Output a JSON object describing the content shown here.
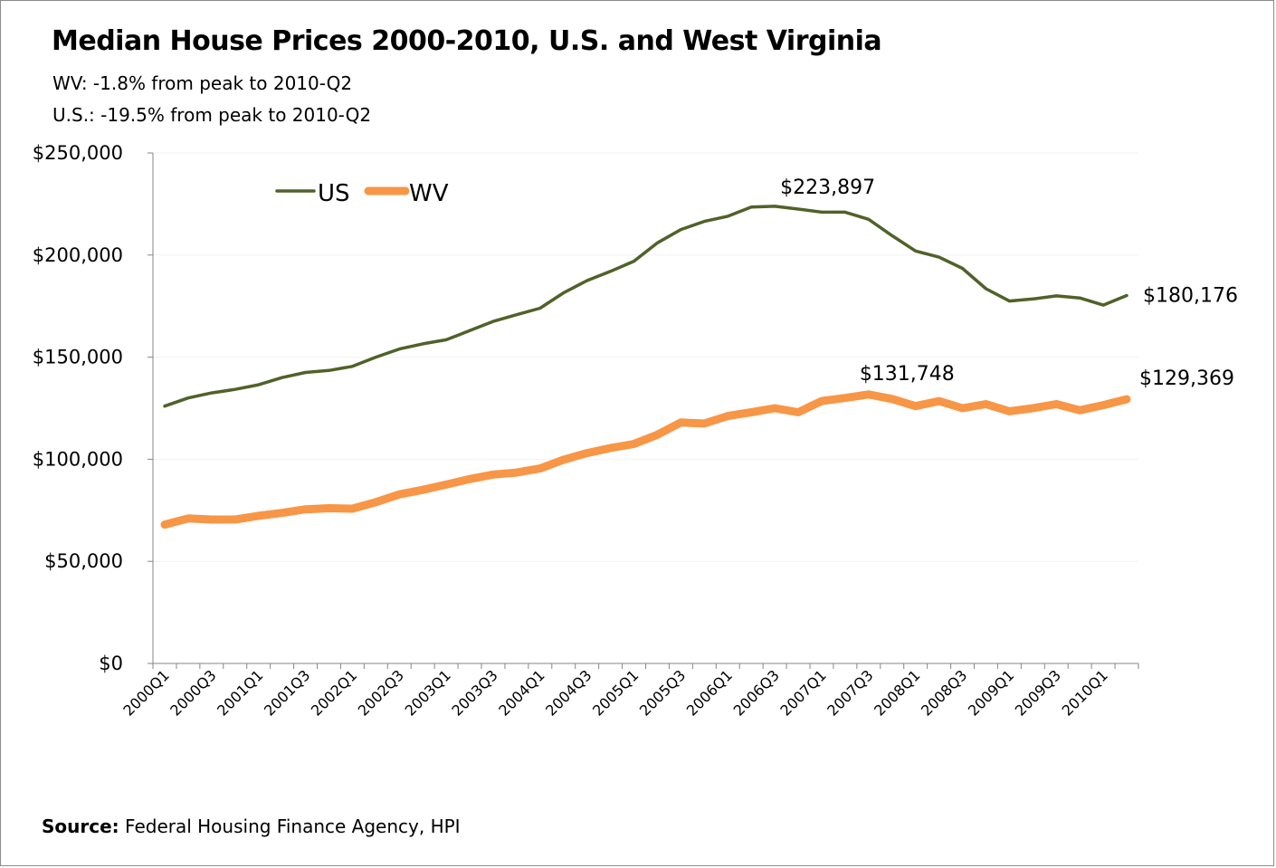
{
  "title": "Median House Prices 2000-2010, U.S. and West Virginia",
  "subtitles": [
    "WV:  -1.8% from peak to 2010-Q2",
    "U.S.: -19.5% from peak to 2010-Q2"
  ],
  "source": {
    "label": "Source:",
    "text": " Federal Housing Finance Agency, HPI"
  },
  "chart_data": {
    "type": "line",
    "title": "Median House Prices 2000-2010, U.S. and West Virginia",
    "xlabel": "",
    "ylabel": "",
    "ylim": [
      0,
      250000
    ],
    "yticks": [
      0,
      50000,
      100000,
      150000,
      200000,
      250000
    ],
    "ytick_labels": [
      "$0",
      "$50,000",
      "$100,000",
      "$150,000",
      "$200,000",
      "$250,000"
    ],
    "grid": "horizontal",
    "legend_position": "top-left",
    "x": [
      "2000Q1",
      "2000Q2",
      "2000Q3",
      "2000Q4",
      "2001Q1",
      "2001Q2",
      "2001Q3",
      "2001Q4",
      "2002Q1",
      "2002Q2",
      "2002Q3",
      "2002Q4",
      "2003Q1",
      "2003Q2",
      "2003Q3",
      "2003Q4",
      "2004Q1",
      "2004Q2",
      "2004Q3",
      "2004Q4",
      "2005Q1",
      "2005Q2",
      "2005Q3",
      "2005Q4",
      "2006Q1",
      "2006Q2",
      "2006Q3",
      "2006Q4",
      "2007Q1",
      "2007Q2",
      "2007Q3",
      "2007Q4",
      "2008Q1",
      "2008Q2",
      "2008Q3",
      "2008Q4",
      "2009Q1",
      "2009Q2",
      "2009Q3",
      "2009Q4",
      "2010Q1",
      "2010Q2"
    ],
    "x_tick_labels": [
      "2000Q1",
      "2000Q3",
      "2001Q1",
      "2001Q3",
      "2002Q1",
      "2002Q3",
      "2003Q1",
      "2003Q3",
      "2004Q1",
      "2004Q3",
      "2005Q1",
      "2005Q3",
      "2006Q1",
      "2006Q3",
      "2007Q1",
      "2007Q3",
      "2008Q1",
      "2008Q3",
      "2009Q1",
      "2009Q3",
      "2010Q1"
    ],
    "series": [
      {
        "name": "US",
        "color": "#4f6228",
        "values": [
          126000,
          130000,
          132500,
          134200,
          136500,
          140000,
          142500,
          143500,
          145500,
          150000,
          154000,
          156500,
          158500,
          163000,
          167500,
          170800,
          174000,
          181500,
          187500,
          192000,
          197000,
          206000,
          212500,
          216500,
          219000,
          223500,
          223897,
          222500,
          221000,
          221000,
          217500,
          209500,
          202000,
          199000,
          193500,
          183500,
          177500,
          178500,
          180000,
          179000,
          175500,
          180176
        ]
      },
      {
        "name": "WV",
        "color": "#f79646",
        "values": [
          68000,
          71000,
          70500,
          70500,
          72300,
          73700,
          75500,
          76000,
          75800,
          79000,
          82800,
          85000,
          87600,
          90300,
          92500,
          93500,
          95500,
          99800,
          103000,
          105500,
          107500,
          112000,
          118000,
          117500,
          121200,
          123000,
          125000,
          123000,
          128500,
          130000,
          131748,
          129500,
          126000,
          128500,
          125000,
          127000,
          123500,
          125000,
          127000,
          124000,
          126500,
          129369
        ]
      }
    ],
    "annotations": [
      {
        "series": "US",
        "x": "2006Q3",
        "label": "$223,897"
      },
      {
        "series": "US",
        "x": "2010Q2",
        "label": "$180,176"
      },
      {
        "series": "WV",
        "x": "2007Q3",
        "label": "$131,748"
      },
      {
        "series": "WV",
        "x": "2010Q2",
        "label": "$129,369"
      }
    ]
  }
}
